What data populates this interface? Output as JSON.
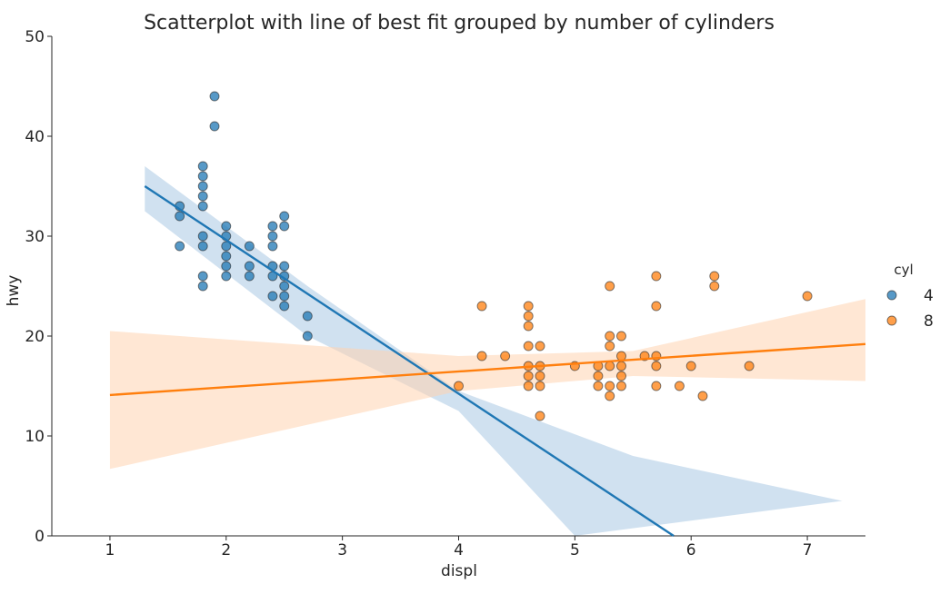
{
  "chart_data": {
    "type": "scatter",
    "title": "Scatterplot with line of best fit grouped by number of cylinders",
    "xlabel": "displ",
    "ylabel": "hwy",
    "xlim": [
      0.5,
      7.5
    ],
    "ylim": [
      0,
      50
    ],
    "x_ticks": [
      "1",
      "2",
      "3",
      "4",
      "5",
      "6",
      "7"
    ],
    "y_ticks": [
      "0",
      "10",
      "20",
      "30",
      "40",
      "50"
    ],
    "grid": false,
    "legend": {
      "title": "cyl",
      "position": "right"
    },
    "series": [
      {
        "name": "4",
        "color": "#1f77b4",
        "band_color": "#a9c8e4",
        "points": [
          [
            1.6,
            33
          ],
          [
            1.6,
            32
          ],
          [
            1.6,
            29
          ],
          [
            1.8,
            37
          ],
          [
            1.8,
            36
          ],
          [
            1.8,
            35
          ],
          [
            1.8,
            34
          ],
          [
            1.8,
            33
          ],
          [
            1.8,
            30
          ],
          [
            1.8,
            29
          ],
          [
            1.8,
            26
          ],
          [
            1.8,
            25
          ],
          [
            1.9,
            44
          ],
          [
            1.9,
            41
          ],
          [
            2.0,
            31
          ],
          [
            2.0,
            30
          ],
          [
            2.0,
            29
          ],
          [
            2.0,
            28
          ],
          [
            2.0,
            27
          ],
          [
            2.0,
            26
          ],
          [
            2.2,
            29
          ],
          [
            2.2,
            27
          ],
          [
            2.2,
            26
          ],
          [
            2.4,
            31
          ],
          [
            2.4,
            30
          ],
          [
            2.4,
            29
          ],
          [
            2.4,
            27
          ],
          [
            2.4,
            26
          ],
          [
            2.4,
            24
          ],
          [
            2.5,
            32
          ],
          [
            2.5,
            31
          ],
          [
            2.5,
            27
          ],
          [
            2.5,
            26
          ],
          [
            2.5,
            25
          ],
          [
            2.5,
            24
          ],
          [
            2.5,
            23
          ],
          [
            2.7,
            22
          ],
          [
            2.7,
            20
          ]
        ],
        "fit": {
          "x": [
            1.3,
            5.85
          ],
          "y": [
            35.0,
            0
          ]
        },
        "ci_upper": [
          [
            1.3,
            37.0
          ],
          [
            2.7,
            25.0
          ],
          [
            4.0,
            14.5
          ],
          [
            5.5,
            8.0
          ],
          [
            7.3,
            3.5
          ]
        ],
        "ci_lower": [
          [
            1.3,
            32.5
          ],
          [
            2.7,
            20.0
          ],
          [
            4.0,
            12.5
          ],
          [
            5.0,
            0
          ]
        ]
      },
      {
        "name": "8",
        "color": "#ff7f0e",
        "band_color": "#ffd3b0",
        "points": [
          [
            4.0,
            15
          ],
          [
            4.2,
            23
          ],
          [
            4.2,
            18
          ],
          [
            4.4,
            18
          ],
          [
            4.6,
            23
          ],
          [
            4.6,
            22
          ],
          [
            4.6,
            21
          ],
          [
            4.6,
            19
          ],
          [
            4.6,
            17
          ],
          [
            4.6,
            16
          ],
          [
            4.6,
            15
          ],
          [
            4.7,
            19
          ],
          [
            4.7,
            17
          ],
          [
            4.7,
            16
          ],
          [
            4.7,
            15
          ],
          [
            4.7,
            12
          ],
          [
            5.0,
            17
          ],
          [
            5.2,
            17
          ],
          [
            5.2,
            16
          ],
          [
            5.2,
            15
          ],
          [
            5.3,
            25
          ],
          [
            5.3,
            20
          ],
          [
            5.3,
            19
          ],
          [
            5.3,
            17
          ],
          [
            5.3,
            15
          ],
          [
            5.3,
            14
          ],
          [
            5.4,
            20
          ],
          [
            5.4,
            18
          ],
          [
            5.4,
            17
          ],
          [
            5.4,
            16
          ],
          [
            5.4,
            15
          ],
          [
            5.6,
            18
          ],
          [
            5.7,
            26
          ],
          [
            5.7,
            23
          ],
          [
            5.7,
            18
          ],
          [
            5.7,
            17
          ],
          [
            5.7,
            15
          ],
          [
            5.9,
            15
          ],
          [
            6.0,
            17
          ],
          [
            6.1,
            14
          ],
          [
            6.2,
            26
          ],
          [
            6.2,
            25
          ],
          [
            6.5,
            17
          ],
          [
            7.0,
            24
          ]
        ],
        "fit": {
          "x": [
            1.0,
            7.5
          ],
          "y": [
            14.1,
            19.2
          ]
        },
        "ci_upper": [
          [
            1.0,
            20.5
          ],
          [
            4.0,
            18.0
          ],
          [
            5.5,
            18.5
          ],
          [
            7.5,
            23.7
          ]
        ],
        "ci_lower": [
          [
            1.0,
            6.7
          ],
          [
            4.0,
            14.5
          ],
          [
            5.5,
            16.0
          ],
          [
            7.5,
            15.5
          ]
        ]
      }
    ]
  }
}
